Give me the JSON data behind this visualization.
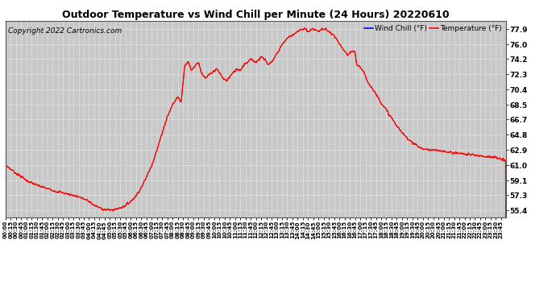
{
  "title": "Outdoor Temperature vs Wind Chill per Minute (24 Hours) 20220610",
  "copyright": "Copyright 2022 Cartronics.com",
  "legend_wind_chill": "Wind Chill (°F)",
  "legend_temperature": "Temperature (°F)",
  "wind_chill_color": "blue",
  "temperature_color": "red",
  "line_color": "red",
  "background_color": "#ffffff",
  "plot_bg_color": "#c8c8c8",
  "grid_color": "#ffffff",
  "yticks": [
    55.4,
    57.3,
    59.1,
    61.0,
    62.9,
    64.8,
    66.7,
    68.5,
    70.4,
    72.3,
    74.2,
    76.0,
    77.9
  ],
  "ymin": 54.5,
  "ymax": 78.9,
  "total_minutes": 1440,
  "keypoints": [
    [
      0,
      61.0
    ],
    [
      15,
      60.5
    ],
    [
      30,
      60.0
    ],
    [
      45,
      59.6
    ],
    [
      60,
      59.1
    ],
    [
      90,
      58.5
    ],
    [
      120,
      58.1
    ],
    [
      150,
      57.7
    ],
    [
      180,
      57.4
    ],
    [
      210,
      57.1
    ],
    [
      240,
      56.5
    ],
    [
      255,
      56.0
    ],
    [
      270,
      55.7
    ],
    [
      285,
      55.5
    ],
    [
      300,
      55.4
    ],
    [
      315,
      55.5
    ],
    [
      330,
      55.7
    ],
    [
      345,
      56.0
    ],
    [
      360,
      56.5
    ],
    [
      375,
      57.2
    ],
    [
      390,
      58.2
    ],
    [
      405,
      59.5
    ],
    [
      420,
      61.0
    ],
    [
      435,
      62.8
    ],
    [
      450,
      65.0
    ],
    [
      465,
      67.0
    ],
    [
      480,
      68.5
    ],
    [
      495,
      69.5
    ],
    [
      505,
      68.8
    ],
    [
      515,
      73.5
    ],
    [
      525,
      73.8
    ],
    [
      535,
      72.8
    ],
    [
      545,
      73.4
    ],
    [
      555,
      73.8
    ],
    [
      565,
      72.2
    ],
    [
      575,
      71.8
    ],
    [
      585,
      72.2
    ],
    [
      595,
      72.5
    ],
    [
      605,
      73.0
    ],
    [
      615,
      72.5
    ],
    [
      625,
      71.8
    ],
    [
      635,
      71.5
    ],
    [
      645,
      72.0
    ],
    [
      655,
      72.5
    ],
    [
      665,
      73.0
    ],
    [
      675,
      72.8
    ],
    [
      685,
      73.5
    ],
    [
      695,
      73.8
    ],
    [
      705,
      74.2
    ],
    [
      715,
      73.8
    ],
    [
      725,
      74.0
    ],
    [
      735,
      74.5
    ],
    [
      745,
      74.2
    ],
    [
      755,
      73.5
    ],
    [
      765,
      73.8
    ],
    [
      775,
      74.5
    ],
    [
      785,
      75.2
    ],
    [
      795,
      76.0
    ],
    [
      810,
      76.8
    ],
    [
      825,
      77.2
    ],
    [
      840,
      77.6
    ],
    [
      855,
      77.9
    ],
    [
      865,
      77.9
    ],
    [
      870,
      77.6
    ],
    [
      880,
      77.9
    ],
    [
      890,
      77.9
    ],
    [
      900,
      77.6
    ],
    [
      910,
      77.9
    ],
    [
      920,
      77.9
    ],
    [
      930,
      77.6
    ],
    [
      940,
      77.2
    ],
    [
      950,
      76.8
    ],
    [
      960,
      76.0
    ],
    [
      975,
      75.2
    ],
    [
      985,
      74.5
    ],
    [
      990,
      75.0
    ],
    [
      1000,
      75.2
    ],
    [
      1005,
      75.0
    ],
    [
      1010,
      73.5
    ],
    [
      1020,
      73.2
    ],
    [
      1030,
      72.5
    ],
    [
      1040,
      71.5
    ],
    [
      1060,
      70.2
    ],
    [
      1080,
      68.8
    ],
    [
      1100,
      67.5
    ],
    [
      1120,
      66.2
    ],
    [
      1140,
      65.0
    ],
    [
      1160,
      64.2
    ],
    [
      1180,
      63.5
    ],
    [
      1200,
      63.0
    ],
    [
      1220,
      62.9
    ],
    [
      1240,
      62.8
    ],
    [
      1260,
      62.7
    ],
    [
      1280,
      62.6
    ],
    [
      1300,
      62.5
    ],
    [
      1320,
      62.4
    ],
    [
      1340,
      62.3
    ],
    [
      1360,
      62.2
    ],
    [
      1380,
      62.1
    ],
    [
      1400,
      62.0
    ],
    [
      1420,
      61.8
    ],
    [
      1439,
      61.5
    ]
  ]
}
